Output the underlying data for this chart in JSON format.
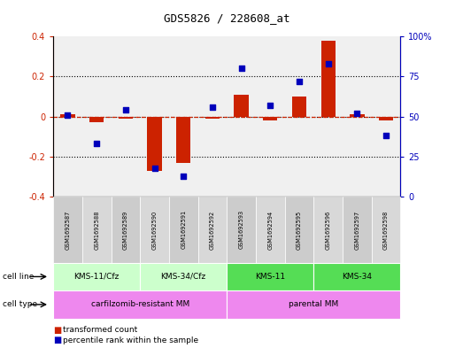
{
  "title": "GDS5826 / 228608_at",
  "samples": [
    "GSM1692587",
    "GSM1692588",
    "GSM1692589",
    "GSM1692590",
    "GSM1692591",
    "GSM1692592",
    "GSM1692593",
    "GSM1692594",
    "GSM1692595",
    "GSM1692596",
    "GSM1692597",
    "GSM1692598"
  ],
  "transformed_count": [
    0.01,
    -0.03,
    -0.01,
    -0.27,
    -0.23,
    -0.01,
    0.11,
    -0.02,
    0.1,
    0.38,
    0.01,
    -0.02
  ],
  "percentile_rank": [
    51,
    33,
    54,
    18,
    13,
    56,
    80,
    57,
    72,
    83,
    52,
    38
  ],
  "cell_line_groups": [
    {
      "label": "KMS-11/Cfz",
      "start": 0,
      "end": 2
    },
    {
      "label": "KMS-34/Cfz",
      "start": 3,
      "end": 5
    },
    {
      "label": "KMS-11",
      "start": 6,
      "end": 8
    },
    {
      "label": "KMS-34",
      "start": 9,
      "end": 11
    }
  ],
  "cell_line_colors": [
    "#ccffcc",
    "#ccffcc",
    "#55dd55",
    "#55dd55"
  ],
  "cell_type_groups": [
    {
      "label": "carfilzomib-resistant MM",
      "start": 0,
      "end": 5
    },
    {
      "label": "parental MM",
      "start": 6,
      "end": 11
    }
  ],
  "cell_type_color": "#ee88ee",
  "bar_color": "#cc2200",
  "dot_color": "#0000bb",
  "left_ylim": [
    -0.4,
    0.4
  ],
  "right_ylim": [
    0,
    100
  ],
  "left_yticks": [
    -0.4,
    -0.2,
    0.0,
    0.2,
    0.4
  ],
  "right_yticks": [
    0,
    25,
    50,
    75,
    100
  ],
  "right_yticklabels": [
    "0",
    "25",
    "50",
    "75",
    "100%"
  ],
  "legend_items": [
    {
      "label": "transformed count",
      "color": "#cc2200"
    },
    {
      "label": "percentile rank within the sample",
      "color": "#0000bb"
    }
  ],
  "background_color": "#ffffff",
  "plot_bg_color": "#f0f0f0",
  "sample_box_colors": [
    "#cccccc",
    "#d8d8d8"
  ]
}
